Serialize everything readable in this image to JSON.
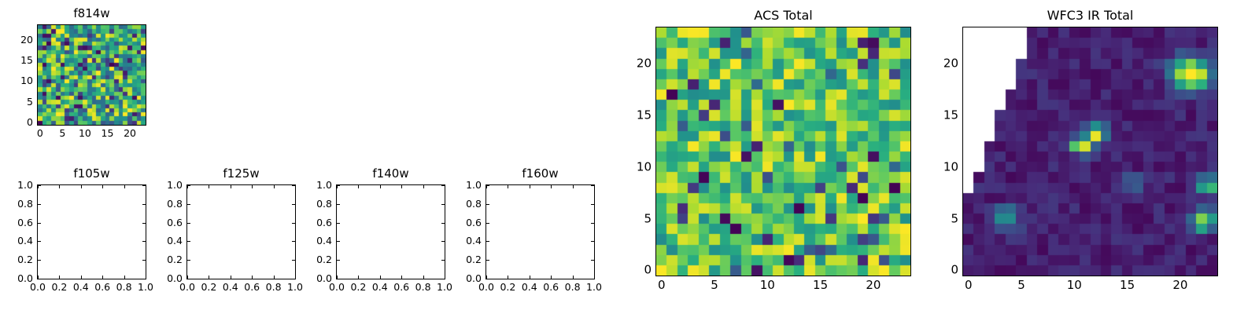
{
  "figure": {
    "background": "#ffffff",
    "frame_color": "#000000",
    "text_color": "#000000"
  },
  "colormap_viridis": [
    "#440154",
    "#472d7b",
    "#3b528b",
    "#2c728e",
    "#21918c",
    "#28ae80",
    "#5ec962",
    "#addc30",
    "#fde725"
  ],
  "chart_data": [
    {
      "id": "f814w",
      "type": "heatmap",
      "title": "f814w",
      "grid": {
        "rows": 24,
        "cols": 24
      },
      "xlim": [
        -0.5,
        23.5
      ],
      "ylim": [
        -0.5,
        23.5
      ],
      "xticks": [
        0,
        5,
        10,
        15,
        20
      ],
      "yticks": [
        0,
        5,
        10,
        15,
        20
      ],
      "colormap": "viridis",
      "seed": 814,
      "noise": {
        "min": 0.3,
        "max": 1.0,
        "dark_fraction": 0.1,
        "dark_min": 0.02,
        "dark_max": 0.3,
        "deep_fraction": 0.02
      },
      "description": "24x24 noisy viridis image, mostly green with scattered dark pixels"
    },
    {
      "id": "f105w",
      "type": "empty",
      "title": "f105w",
      "xlim": [
        0,
        1
      ],
      "ylim": [
        0,
        1
      ],
      "xticks": [
        "0.0",
        "0.2",
        "0.4",
        "0.6",
        "0.8",
        "1.0"
      ],
      "yticks": [
        "0.0",
        "0.2",
        "0.4",
        "0.6",
        "0.8",
        "1.0"
      ],
      "tick_marks": true,
      "description": "empty axes, no data plotted"
    },
    {
      "id": "f125w",
      "type": "empty",
      "title": "f125w",
      "xlim": [
        0,
        1
      ],
      "ylim": [
        0,
        1
      ],
      "xticks": [
        "0.0",
        "0.2",
        "0.4",
        "0.6",
        "0.8",
        "1.0"
      ],
      "yticks": [
        "0.0",
        "0.2",
        "0.4",
        "0.6",
        "0.8",
        "1.0"
      ],
      "tick_marks": true,
      "description": "empty axes, no data plotted"
    },
    {
      "id": "f140w",
      "type": "empty",
      "title": "f140w",
      "xlim": [
        0,
        1
      ],
      "ylim": [
        0,
        1
      ],
      "xticks": [
        "0.0",
        "0.2",
        "0.4",
        "0.6",
        "0.8",
        "1.0"
      ],
      "yticks": [
        "0.0",
        "0.2",
        "0.4",
        "0.6",
        "0.8",
        "1.0"
      ],
      "tick_marks": true,
      "description": "empty axes, no data plotted"
    },
    {
      "id": "f160w",
      "type": "empty",
      "title": "f160w",
      "xlim": [
        0,
        1
      ],
      "ylim": [
        0,
        1
      ],
      "xticks": [
        "0.0",
        "0.2",
        "0.4",
        "0.6",
        "0.8",
        "1.0"
      ],
      "yticks": [
        "0.0",
        "0.2",
        "0.4",
        "0.6",
        "0.8",
        "1.0"
      ],
      "tick_marks": true,
      "description": "empty axes, no data plotted"
    },
    {
      "id": "acs_total",
      "type": "heatmap",
      "title": "ACS Total",
      "grid": {
        "rows": 24,
        "cols": 24
      },
      "xlim": [
        -0.5,
        23.5
      ],
      "ylim": [
        -0.5,
        23.5
      ],
      "xticks": [
        0,
        5,
        10,
        15,
        20
      ],
      "yticks": [
        0,
        5,
        10,
        15,
        20
      ],
      "colormap": "viridis",
      "seed": 607,
      "noise": {
        "min": 0.48,
        "max": 1.0,
        "dark_fraction": 0.07,
        "dark_min": 0.08,
        "dark_max": 0.35,
        "deep_fraction": 0.02
      },
      "description": "24x24 noisy viridis image, green/yellow field with scattered dark blue and near-black pixels"
    },
    {
      "id": "wfc3_total",
      "type": "heatmap",
      "title": "WFC3 IR Total",
      "grid": {
        "rows": 24,
        "cols": 24
      },
      "xlim": [
        -0.5,
        23.5
      ],
      "ylim": [
        -0.5,
        23.5
      ],
      "xticks": [
        0,
        5,
        10,
        15,
        20
      ],
      "yticks": [
        0,
        5,
        10,
        15,
        20
      ],
      "colormap": "viridis",
      "seed": 160,
      "noise": {
        "min": 0.02,
        "max": 0.16
      },
      "blobs": [
        {
          "x": 21.0,
          "y": 19.0,
          "rx": 1.7,
          "ry": 1.5,
          "amp": 1.1
        },
        {
          "x": 10.6,
          "y": 12.1,
          "rx": 1.0,
          "ry": 0.8,
          "amp": 1.0
        },
        {
          "x": 12.1,
          "y": 13.3,
          "rx": 0.9,
          "ry": 0.8,
          "amp": 0.9
        },
        {
          "x": 3.5,
          "y": 5.0,
          "rx": 1.2,
          "ry": 1.1,
          "amp": 0.5
        },
        {
          "x": 22.6,
          "y": 8.2,
          "rx": 0.9,
          "ry": 0.9,
          "amp": 0.65
        },
        {
          "x": 22.2,
          "y": 4.8,
          "rx": 1.1,
          "ry": 1.0,
          "amp": 0.8
        },
        {
          "x": 15.6,
          "y": 8.4,
          "rx": 0.7,
          "ry": 0.7,
          "amp": 0.45
        }
      ],
      "mask": {
        "shape": "upper-left-triangle",
        "cols": 6,
        "rows": 16,
        "color": "#ffffff"
      },
      "description": "24x24 dark purple viridis image with a few bright yellow/green sources and a white masked triangular region in the upper-left corner"
    }
  ]
}
